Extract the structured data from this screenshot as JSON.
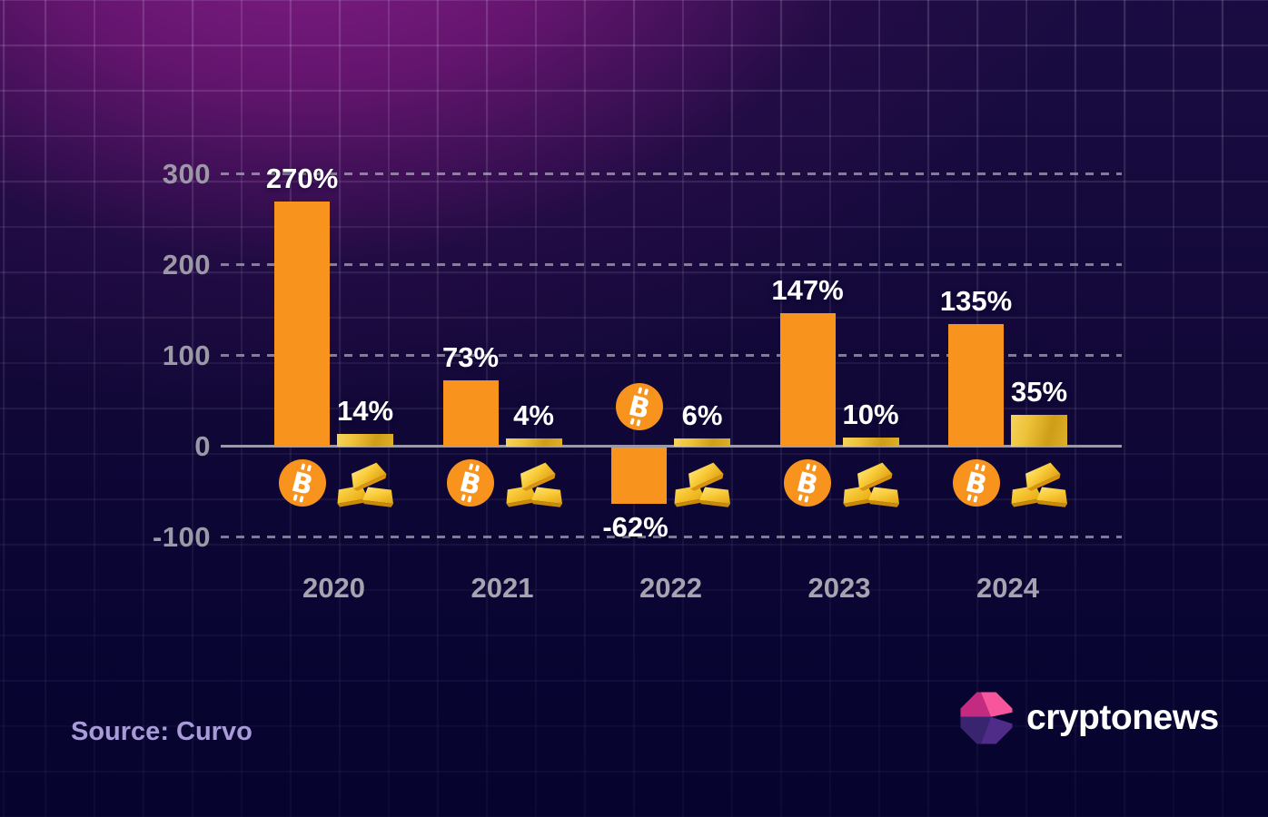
{
  "chart_data": {
    "type": "bar",
    "title": "",
    "categories": [
      "2020",
      "2021",
      "2022",
      "2023",
      "2024"
    ],
    "series": [
      {
        "name": "Bitcoin",
        "icon": "bitcoin-coin-icon",
        "color": "#F8941D",
        "values": [
          270,
          73,
          -62,
          147,
          135
        ],
        "labels": [
          "270%",
          "73%",
          "-62%",
          "147%",
          "135%"
        ]
      },
      {
        "name": "Gold",
        "icon": "gold-ingots-icon",
        "color": "#EEC23A",
        "values": [
          14,
          4,
          6,
          10,
          35
        ],
        "labels": [
          "14%",
          "4%",
          "6%",
          "10%",
          "35%"
        ]
      }
    ],
    "xlabel": "",
    "ylabel": "",
    "y_ticks": [
      300,
      200,
      100,
      0,
      -100
    ],
    "ylim": [
      -130,
      330
    ],
    "grid": "dashed horizontal gridlines at 300/200/100/-100, solid zero axis line",
    "legend": "bitcoin coin and gold ingot icons beneath each bar pair"
  },
  "footer": {
    "source_label": "Source: Curvo"
  },
  "brand": {
    "wordmark": "cryptonews",
    "icon": "cryptonews-octagon-logo",
    "colors": {
      "pink": "#F8569C",
      "magenta": "#C22B80",
      "purple_dark": "#39246F",
      "purple_mid": "#4F2C88"
    }
  },
  "colors": {
    "background_navy": "#06042E",
    "background_glow": "#8C2090",
    "bitcoin_orange": "#F8941D",
    "gold": "#EEC23A",
    "tick_gray": "#9C99A6",
    "year_gray": "#A7A4B0",
    "value_white": "#FFFFFF",
    "source_lavender": "#A89BD8",
    "axis_gray": "#9A98AC"
  }
}
